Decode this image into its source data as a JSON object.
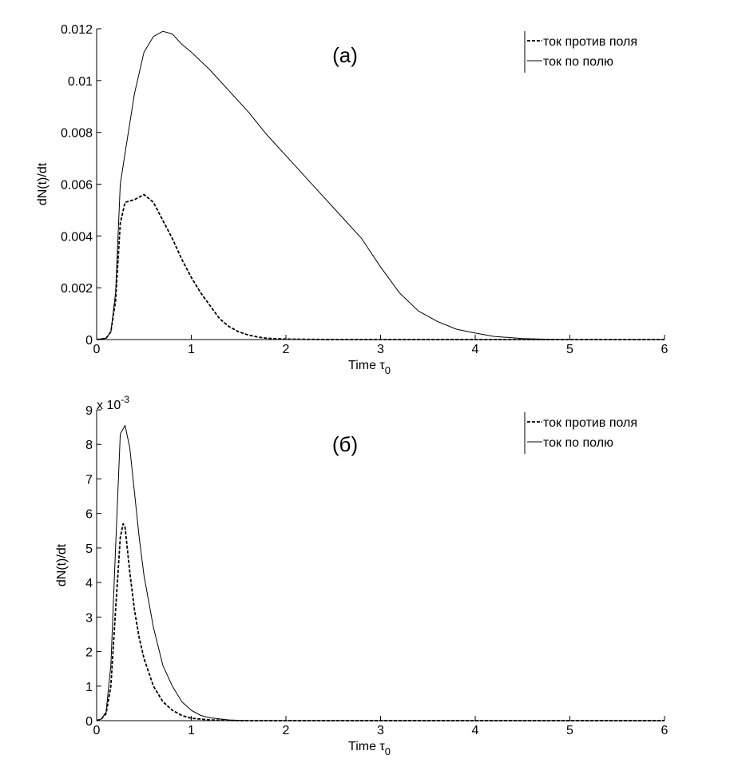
{
  "chart_data": [
    {
      "type": "line",
      "panel_label": "(a)",
      "xlabel_main": "Time",
      "xlabel_symbol": "τ",
      "xlabel_sub": "0",
      "ylabel": "dN(t)/dt",
      "xlim": [
        0,
        6
      ],
      "ylim": [
        0,
        0.012
      ],
      "xticks": [
        0,
        1,
        2,
        3,
        4,
        5,
        6
      ],
      "yticks": [
        0,
        0.002,
        0.004,
        0.006,
        0.008,
        0.01,
        0.012
      ],
      "ytick_labels": [
        "0",
        "0.002",
        "0.004",
        "0.006",
        "0.008",
        "0.01",
        "0.012"
      ],
      "exponent_label": "",
      "legend": [
        "ток против поля",
        "ток по полю"
      ],
      "legend_position": "top-right",
      "series": [
        {
          "name": "ток против поля",
          "style": "dashed",
          "x": [
            0,
            0.1,
            0.15,
            0.2,
            0.25,
            0.3,
            0.4,
            0.5,
            0.6,
            0.7,
            0.8,
            0.9,
            1.0,
            1.1,
            1.2,
            1.3,
            1.4,
            1.5,
            1.6,
            1.7,
            1.8,
            1.9,
            2.0,
            2.2,
            2.5,
            3.0,
            6.0
          ],
          "y": [
            0,
            5e-05,
            0.0003,
            0.0015,
            0.0045,
            0.0053,
            0.0054,
            0.0056,
            0.0053,
            0.0046,
            0.0039,
            0.0031,
            0.0024,
            0.0018,
            0.0013,
            0.0008,
            0.0005,
            0.0003,
            0.00018,
            0.0001,
            5e-05,
            3e-05,
            2e-05,
            1e-05,
            0,
            0,
            0
          ]
        },
        {
          "name": "ток по полю",
          "style": "solid",
          "x": [
            0,
            0.1,
            0.15,
            0.2,
            0.25,
            0.3,
            0.4,
            0.5,
            0.6,
            0.7,
            0.8,
            0.9,
            1.0,
            1.2,
            1.4,
            1.6,
            1.8,
            2.0,
            2.2,
            2.4,
            2.6,
            2.8,
            3.0,
            3.2,
            3.4,
            3.6,
            3.8,
            4.0,
            4.2,
            4.5,
            4.8,
            5.0,
            6.0
          ],
          "y": [
            0,
            5e-05,
            0.0003,
            0.0018,
            0.006,
            0.0072,
            0.0095,
            0.0111,
            0.0117,
            0.0119,
            0.0118,
            0.0114,
            0.0111,
            0.0104,
            0.0096,
            0.0088,
            0.0079,
            0.0071,
            0.0063,
            0.0055,
            0.0047,
            0.0039,
            0.0028,
            0.0018,
            0.0011,
            0.0007,
            0.0004,
            0.00025,
            0.00012,
            4e-05,
            1e-05,
            0,
            0
          ]
        }
      ]
    },
    {
      "type": "line",
      "panel_label": "(б)",
      "xlabel_main": "Time",
      "xlabel_symbol": "τ",
      "xlabel_sub": "0",
      "ylabel": "dN(t)/dt",
      "xlim": [
        0,
        6
      ],
      "ylim": [
        0,
        9
      ],
      "xticks": [
        0,
        1,
        2,
        3,
        4,
        5,
        6
      ],
      "yticks": [
        0,
        1,
        2,
        3,
        4,
        5,
        6,
        7,
        8,
        9
      ],
      "ytick_labels": [
        "0",
        "1",
        "2",
        "3",
        "4",
        "5",
        "6",
        "7",
        "8",
        "9"
      ],
      "exponent_label": "x 10",
      "exponent_power": "-3",
      "legend": [
        "ток против поля",
        "ток по полю"
      ],
      "legend_position": "top-right",
      "series": [
        {
          "name": "ток против поля",
          "style": "dashed",
          "x": [
            0,
            0.05,
            0.1,
            0.15,
            0.2,
            0.25,
            0.28,
            0.3,
            0.35,
            0.4,
            0.45,
            0.5,
            0.6,
            0.7,
            0.8,
            0.9,
            1.0,
            1.2,
            1.5,
            6.0
          ],
          "y": [
            0,
            0.05,
            0.2,
            1.0,
            3.2,
            5.3,
            5.7,
            5.6,
            4.3,
            3.2,
            2.4,
            1.8,
            1.0,
            0.55,
            0.3,
            0.15,
            0.07,
            0.02,
            0,
            0
          ]
        },
        {
          "name": "ток по полю",
          "style": "solid",
          "x": [
            0,
            0.05,
            0.1,
            0.15,
            0.2,
            0.25,
            0.3,
            0.35,
            0.4,
            0.45,
            0.5,
            0.6,
            0.7,
            0.8,
            0.9,
            1.0,
            1.1,
            1.2,
            1.4,
            1.6,
            6.0
          ],
          "y": [
            0,
            0.05,
            0.25,
            1.6,
            5.0,
            8.3,
            8.55,
            7.9,
            6.6,
            5.3,
            4.2,
            2.7,
            1.6,
            1.0,
            0.55,
            0.3,
            0.15,
            0.08,
            0.02,
            0,
            0
          ]
        }
      ]
    }
  ]
}
